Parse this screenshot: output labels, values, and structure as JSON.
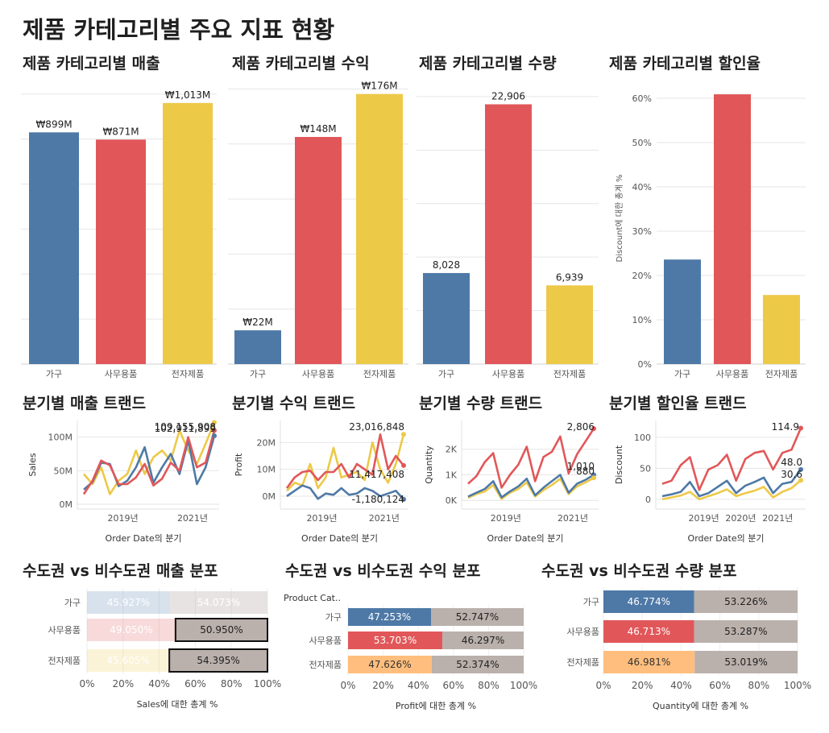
{
  "page": {
    "title": "제품 카테고리별 주요 지표 현황"
  },
  "colors": {
    "furniture": "#4e79a7",
    "office": "#e15759",
    "tech": "#edc948",
    "non_metro": "#bab0ac",
    "tech_light": "#ffbe7d",
    "grid": "#e6e6e6"
  },
  "panel_titles": {
    "sales_bar": "제품 카테고리별 매출",
    "profit_bar": "제품 카테고리별 수익",
    "qty_bar": "제품 카테고리별 수량",
    "disc_bar": "제품 카테고리별 할인율",
    "sales_trend": "분기별 매출 트랜드",
    "profit_trend": "분기별 수익 트랜드",
    "qty_trend": "분기별 수량 트랜드",
    "disc_trend": "분기별 할인율 트랜드",
    "sales_dist": "수도권 vs 비수도권 매출 분포",
    "profit_dist": "수도권 vs 비수도권 수익 분포",
    "qty_dist": "수도권 vs 비수도권 수량 분포"
  },
  "chart_data": [
    {
      "id": "sales_bar",
      "type": "bar",
      "categories": [
        "가구",
        "사무용품",
        "전자제품"
      ],
      "values": [
        899,
        871,
        1013
      ],
      "labels": [
        "₩899M",
        "₩871M",
        "₩1,013M"
      ],
      "ylim": [
        0,
        1100
      ]
    },
    {
      "id": "profit_bar",
      "type": "bar",
      "categories": [
        "가구",
        "사무용품",
        "전자제품"
      ],
      "values": [
        22,
        148,
        176
      ],
      "labels": [
        "₩22M",
        "₩148M",
        "₩176M"
      ],
      "ylim": [
        0,
        190
      ]
    },
    {
      "id": "qty_bar",
      "type": "bar",
      "categories": [
        "가구",
        "사무용품",
        "전자제품"
      ],
      "values": [
        8028,
        22906,
        6939
      ],
      "labels": [
        "8,028",
        "22,906",
        "6,939"
      ],
      "ylim": [
        0,
        25000
      ]
    },
    {
      "id": "disc_bar",
      "type": "bar",
      "categories": [
        "가구",
        "사무용품",
        "전자제품"
      ],
      "values": [
        23.6,
        60.9,
        15.6
      ],
      "ylim": [
        0,
        64
      ],
      "ylabel": "Discount에 대한 총계 %",
      "yticks": [
        "0%",
        "10%",
        "20%",
        "30%",
        "40%",
        "50%",
        "60%"
      ],
      "ytick_values": [
        0,
        10,
        20,
        30,
        40,
        50,
        60
      ]
    },
    {
      "id": "sales_trend",
      "type": "line",
      "xlabel": "Order Date의 분기",
      "ylabel": "Sales",
      "ylim": [
        0,
        120
      ],
      "yticks": [
        "0M",
        "50M",
        "100M"
      ],
      "ytick_values": [
        0,
        50,
        100
      ],
      "xticks": [
        "2019년",
        "2021년"
      ],
      "xtick_positions": [
        4.5,
        12.5
      ],
      "series": [
        {
          "name": "가구",
          "values": [
            22,
            33,
            62,
            60,
            27,
            35,
            55,
            85,
            32,
            55,
            75,
            45,
            95,
            30,
            55,
            102
          ]
        },
        {
          "name": "사무용품",
          "values": [
            15,
            35,
            65,
            58,
            30,
            30,
            40,
            60,
            28,
            38,
            62,
            50,
            100,
            55,
            62,
            110
          ]
        },
        {
          "name": "전자제품",
          "values": [
            45,
            30,
            55,
            15,
            35,
            45,
            80,
            45,
            70,
            80,
            65,
            110,
            80,
            60,
            90,
            122
          ]
        }
      ],
      "annotations": [
        "109,155,908",
        "102,911,899"
      ]
    },
    {
      "id": "profit_trend",
      "type": "line",
      "xlabel": "Order Date의 분기",
      "ylabel": "Profit",
      "ylim": [
        -3,
        27
      ],
      "yticks": [
        "0M",
        "10M",
        "20M"
      ],
      "ytick_values": [
        0,
        10,
        20
      ],
      "xticks": [
        "2019년",
        "2021년"
      ],
      "xtick_positions": [
        4.5,
        12.5
      ],
      "series": [
        {
          "name": "가구",
          "values": [
            0,
            2,
            4,
            3,
            -1,
            1,
            0.5,
            3,
            0.5,
            1,
            3,
            2,
            0,
            1,
            2,
            -1.18
          ]
        },
        {
          "name": "사무용품",
          "values": [
            3,
            7,
            9,
            9.5,
            6,
            9,
            9,
            12,
            7,
            12,
            10,
            8,
            23,
            10,
            15,
            11.42
          ]
        },
        {
          "name": "전자제품",
          "values": [
            2,
            5,
            4,
            12,
            3,
            7,
            18,
            7,
            8,
            9,
            6,
            20,
            10,
            5,
            12,
            23.02
          ]
        }
      ],
      "annotations": [
        "23,016,848",
        "11,417,408",
        "-1,180,124"
      ]
    },
    {
      "id": "qty_trend",
      "type": "line",
      "xlabel": "Order Date의 분기",
      "ylabel": "Quantity",
      "ylim": [
        -150,
        3000
      ],
      "yticks": [
        "0K",
        "1K",
        "2K"
      ],
      "ytick_values": [
        0,
        1000,
        2000
      ],
      "xticks": [
        "2019년",
        "2021년"
      ],
      "xtick_positions": [
        4.5,
        12.5
      ],
      "series": [
        {
          "name": "가구",
          "values": [
            150,
            300,
            450,
            750,
            120,
            350,
            550,
            850,
            200,
            500,
            750,
            1000,
            300,
            650,
            800,
            1000
          ]
        },
        {
          "name": "사무용품",
          "values": [
            650,
            950,
            1500,
            1850,
            500,
            1000,
            1400,
            2100,
            750,
            1700,
            1900,
            2500,
            1050,
            1800,
            2300,
            2806
          ]
        },
        {
          "name": "전자제품",
          "values": [
            100,
            250,
            350,
            600,
            60,
            300,
            450,
            700,
            150,
            400,
            600,
            850,
            250,
            550,
            700,
            880
          ]
        }
      ],
      "annotations": [
        "2,806",
        "1,010",
        "880"
      ]
    },
    {
      "id": "disc_trend",
      "type": "line",
      "xlabel": "Order Date의 분기",
      "ylabel": "Discount",
      "ylim": [
        -8,
        122
      ],
      "yticks": [
        "0",
        "50",
        "100"
      ],
      "ytick_values": [
        0,
        50,
        100
      ],
      "xticks": [
        "2019년",
        "2020년",
        "2021년"
      ],
      "xtick_positions": [
        4.5,
        8.5,
        12.5
      ],
      "series": [
        {
          "name": "가구",
          "values": [
            5,
            8,
            12,
            28,
            5,
            10,
            20,
            30,
            10,
            22,
            28,
            35,
            10,
            25,
            28,
            48
          ]
        },
        {
          "name": "사무용품",
          "values": [
            25,
            30,
            55,
            68,
            15,
            48,
            55,
            72,
            30,
            65,
            75,
            78,
            48,
            75,
            80,
            114.9
          ]
        },
        {
          "name": "전자제품",
          "values": [
            0,
            3,
            6,
            12,
            0,
            5,
            10,
            16,
            5,
            10,
            14,
            20,
            3,
            12,
            18,
            30.6
          ]
        }
      ],
      "annotations": [
        "114.9",
        "48.0",
        "30.6"
      ]
    },
    {
      "id": "sales_dist",
      "type": "bar",
      "orientation": "horizontal",
      "stacked": true,
      "categories": [
        "가구",
        "사무용품",
        "전자제품"
      ],
      "series": [
        {
          "name": "수도권",
          "values": [
            45.927,
            49.05,
            45.605
          ]
        },
        {
          "name": "비수도권",
          "values": [
            54.073,
            50.95,
            54.395
          ]
        }
      ],
      "labels_left": [
        "45.927%",
        "49.050%",
        "45.605%"
      ],
      "labels_right": [
        "54.073%",
        "50.950%",
        "54.395%"
      ],
      "xticks": [
        "0%",
        "20%",
        "40%",
        "60%",
        "80%",
        "100%"
      ],
      "xlabel": "Sales에 대한 총계 %"
    },
    {
      "id": "profit_dist",
      "type": "bar",
      "orientation": "horizontal",
      "stacked": true,
      "categories": [
        "가구",
        "사무용품",
        "전자제품"
      ],
      "header": "Product Cat..",
      "series": [
        {
          "name": "수도권",
          "values": [
            47.253,
            53.703,
            47.626
          ]
        },
        {
          "name": "비수도권",
          "values": [
            52.747,
            46.297,
            52.374
          ]
        }
      ],
      "labels_left": [
        "47.253%",
        "53.703%",
        "47.626%"
      ],
      "labels_right": [
        "52.747%",
        "46.297%",
        "52.374%"
      ],
      "xticks": [
        "0%",
        "20%",
        "40%",
        "60%",
        "80%",
        "100%"
      ],
      "xlabel": "Profit에 대한 총계 %"
    },
    {
      "id": "qty_dist",
      "type": "bar",
      "orientation": "horizontal",
      "stacked": true,
      "categories": [
        "가구",
        "사무용품",
        "전자제품"
      ],
      "series": [
        {
          "name": "수도권",
          "values": [
            46.774,
            46.713,
            46.981
          ]
        },
        {
          "name": "비수도권",
          "values": [
            53.226,
            53.287,
            53.019
          ]
        }
      ],
      "labels_left": [
        "46.774%",
        "46.713%",
        "46.981%"
      ],
      "labels_right": [
        "53.226%",
        "53.287%",
        "53.019%"
      ],
      "xticks": [
        "0%",
        "20%",
        "40%",
        "60%",
        "80%",
        "100%"
      ],
      "xlabel": "Quantity에 대한 총계 %"
    }
  ]
}
